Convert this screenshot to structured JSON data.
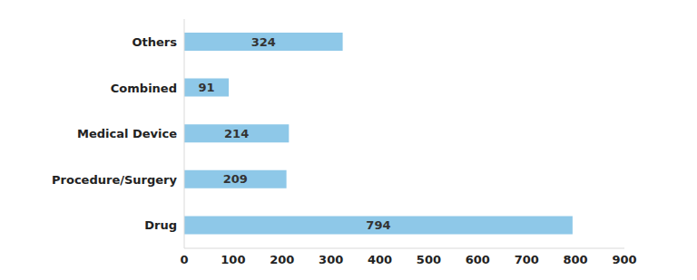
{
  "chart_data": {
    "type": "bar",
    "orientation": "horizontal",
    "categories": [
      "Others",
      "Combined",
      "Medical Device",
      "Procedure/Surgery",
      "Drug"
    ],
    "values": [
      324,
      91,
      214,
      209,
      794
    ],
    "color": "#8ec8e8",
    "xlim": [
      0,
      900
    ],
    "xticks": [
      0,
      100,
      200,
      300,
      400,
      500,
      600,
      700,
      800,
      900
    ],
    "grid": false,
    "data_labels": true
  }
}
